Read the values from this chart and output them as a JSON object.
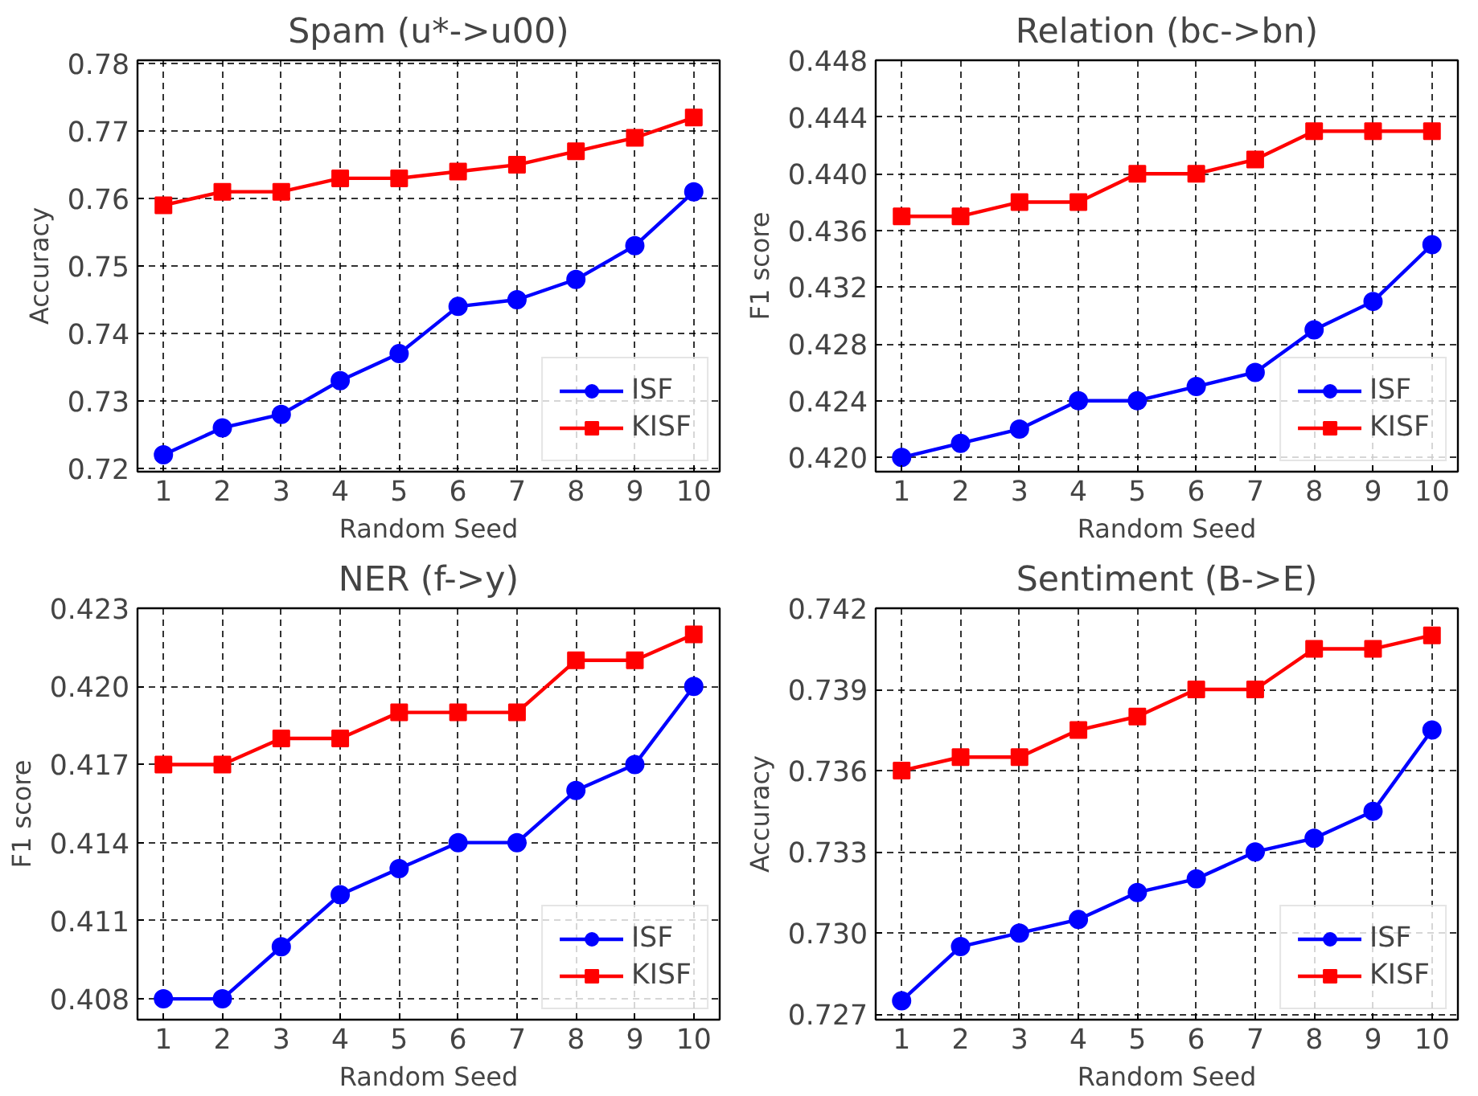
{
  "chart_data": [
    {
      "type": "line",
      "title": "Spam (u*->u00)",
      "xlabel": "Random Seed",
      "ylabel": "Accuracy",
      "x": [
        1,
        2,
        3,
        4,
        5,
        6,
        7,
        8,
        9,
        10
      ],
      "xlim": [
        0.56,
        10.44
      ],
      "xticks": [
        1,
        2,
        3,
        4,
        5,
        6,
        7,
        8,
        9,
        10
      ],
      "ylim": [
        0.7195,
        0.7805
      ],
      "yticks": [
        0.72,
        0.73,
        0.74,
        0.75,
        0.76,
        0.77,
        0.78
      ],
      "grid": true,
      "legend": "bottom right",
      "series": [
        {
          "name": "ISF",
          "color": "#0000ff",
          "marker": "circle",
          "values": [
            0.722,
            0.726,
            0.728,
            0.733,
            0.737,
            0.744,
            0.745,
            0.748,
            0.753,
            0.761
          ]
        },
        {
          "name": "KISF",
          "color": "#ff0000",
          "marker": "square",
          "values": [
            0.759,
            0.761,
            0.761,
            0.763,
            0.763,
            0.764,
            0.765,
            0.767,
            0.769,
            0.772
          ]
        }
      ]
    },
    {
      "type": "line",
      "title": "Relation (bc->bn)",
      "xlabel": "Random Seed",
      "ylabel": "F1 score",
      "x": [
        1,
        2,
        3,
        4,
        5,
        6,
        7,
        8,
        9,
        10
      ],
      "xlim": [
        0.56,
        10.44
      ],
      "xticks": [
        1,
        2,
        3,
        4,
        5,
        6,
        7,
        8,
        9,
        10
      ],
      "ylim": [
        0.419,
        0.448
      ],
      "yticks": [
        {
          "value": 0.42,
          "label": "0.420"
        },
        0.424,
        0.428,
        0.432,
        0.436,
        {
          "value": 0.44,
          "label": "0.440"
        },
        0.444,
        0.448
      ],
      "grid": true,
      "legend": "bottom right",
      "series": [
        {
          "name": "ISF",
          "color": "#0000ff",
          "marker": "circle",
          "values": [
            0.42,
            0.421,
            0.422,
            0.424,
            0.424,
            0.425,
            0.426,
            0.429,
            0.431,
            0.435
          ]
        },
        {
          "name": "KISF",
          "color": "#ff0000",
          "marker": "square",
          "values": [
            0.437,
            0.437,
            0.438,
            0.438,
            0.44,
            0.44,
            0.441,
            0.443,
            0.443,
            0.443
          ]
        }
      ]
    },
    {
      "type": "line",
      "title": "NER (f->y)",
      "xlabel": "Random Seed",
      "ylabel": "F1 score",
      "x": [
        1,
        2,
        3,
        4,
        5,
        6,
        7,
        8,
        9,
        10
      ],
      "xlim": [
        0.56,
        10.44
      ],
      "xticks": [
        1,
        2,
        3,
        4,
        5,
        6,
        7,
        8,
        9,
        10
      ],
      "ylim": [
        0.4072,
        0.423
      ],
      "yticks": [
        0.408,
        0.411,
        0.414,
        0.417,
        {
          "value": 0.42,
          "label": "0.420"
        },
        0.423
      ],
      "grid": true,
      "legend": "bottom right",
      "series": [
        {
          "name": "ISF",
          "color": "#0000ff",
          "marker": "circle",
          "values": [
            0.408,
            0.408,
            0.41,
            0.412,
            0.413,
            0.414,
            0.414,
            0.416,
            0.417,
            0.42
          ]
        },
        {
          "name": "KISF",
          "color": "#ff0000",
          "marker": "square",
          "values": [
            0.417,
            0.417,
            0.418,
            0.418,
            0.419,
            0.419,
            0.419,
            0.421,
            0.421,
            0.422
          ]
        }
      ]
    },
    {
      "type": "line",
      "title": "Sentiment (B->E)",
      "xlabel": "Random Seed",
      "ylabel": "Accuracy",
      "x": [
        1,
        2,
        3,
        4,
        5,
        6,
        7,
        8,
        9,
        10
      ],
      "xlim": [
        0.56,
        10.44
      ],
      "xticks": [
        1,
        2,
        3,
        4,
        5,
        6,
        7,
        8,
        9,
        10
      ],
      "ylim": [
        0.7268,
        0.742
      ],
      "yticks": [
        0.727,
        {
          "value": 0.73,
          "label": "0.730"
        },
        0.733,
        0.736,
        0.739,
        0.742
      ],
      "grid": true,
      "legend": "bottom right",
      "series": [
        {
          "name": "ISF",
          "color": "#0000ff",
          "marker": "circle",
          "values": [
            0.7275,
            0.7295,
            0.73,
            0.7305,
            0.7315,
            0.732,
            0.733,
            0.7335,
            0.7345,
            0.7375
          ]
        },
        {
          "name": "KISF",
          "color": "#ff0000",
          "marker": "square",
          "values": [
            0.736,
            0.7365,
            0.7365,
            0.7375,
            0.738,
            0.739,
            0.739,
            0.7405,
            0.7405,
            0.741
          ]
        }
      ]
    }
  ]
}
